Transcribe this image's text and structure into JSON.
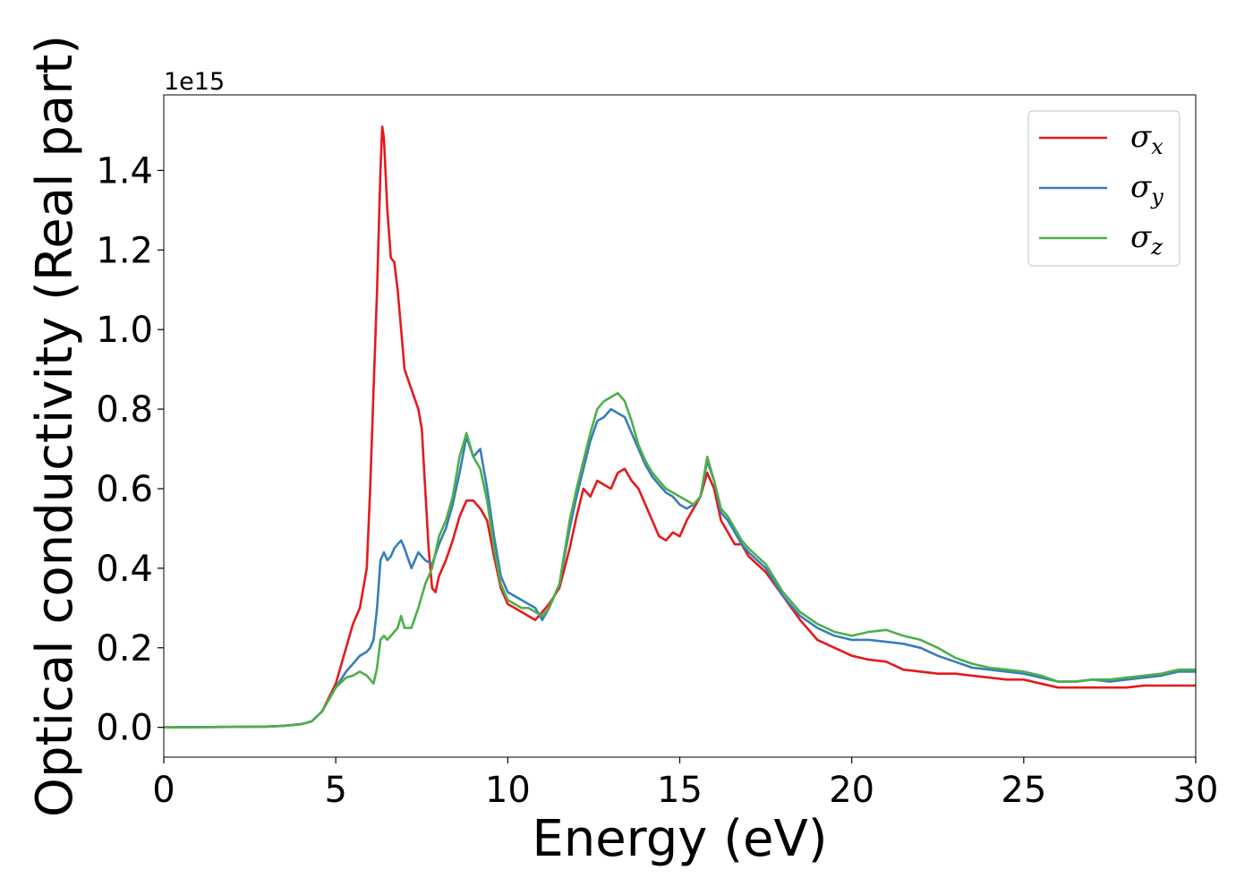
{
  "chart_data": {
    "type": "line",
    "title": "",
    "xlabel": "Energy (eV)",
    "ylabel": "Optical conductivity (Real part)",
    "y_offset_label": "1e15",
    "xlim": [
      0,
      30
    ],
    "ylim": [
      -0.075,
      1.59
    ],
    "xticks": [
      0,
      5,
      10,
      15,
      20,
      25,
      30
    ],
    "xtick_labels": [
      "0",
      "5",
      "10",
      "15",
      "20",
      "25",
      "30"
    ],
    "yticks": [
      0.0,
      0.2,
      0.4,
      0.6,
      0.8,
      1.0,
      1.2,
      1.4
    ],
    "ytick_labels": [
      "0.0",
      "0.2",
      "0.4",
      "0.6",
      "0.8",
      "1.0",
      "1.2",
      "1.4"
    ],
    "grid": false,
    "legend_position": "top-right",
    "series": [
      {
        "name": "σx",
        "legend_symbol": "σ",
        "legend_subscript": "x",
        "color": "#e41a1c",
        "x": [
          0,
          2,
          3,
          3.5,
          4,
          4.3,
          4.6,
          5.0,
          5.3,
          5.5,
          5.7,
          5.9,
          6.0,
          6.1,
          6.2,
          6.3,
          6.35,
          6.4,
          6.5,
          6.6,
          6.7,
          6.8,
          6.9,
          7.0,
          7.2,
          7.4,
          7.5,
          7.6,
          7.7,
          7.8,
          7.9,
          8.0,
          8.2,
          8.4,
          8.6,
          8.8,
          9.0,
          9.2,
          9.4,
          9.6,
          9.8,
          10.0,
          10.2,
          10.4,
          10.6,
          10.8,
          11.0,
          11.2,
          11.5,
          11.8,
          12.0,
          12.2,
          12.4,
          12.6,
          12.8,
          13.0,
          13.2,
          13.4,
          13.6,
          13.8,
          14.0,
          14.2,
          14.4,
          14.6,
          14.8,
          15.0,
          15.2,
          15.4,
          15.6,
          15.8,
          16.0,
          16.2,
          16.4,
          16.6,
          16.8,
          17.0,
          17.5,
          18.0,
          18.5,
          19.0,
          19.5,
          20.0,
          20.5,
          21.0,
          21.5,
          22.0,
          22.5,
          23.0,
          23.5,
          24.0,
          24.5,
          25.0,
          25.5,
          26.0,
          26.5,
          27.0,
          27.5,
          28.0,
          28.5,
          29.0,
          29.5,
          30.0
        ],
        "y": [
          0,
          0.001,
          0.002,
          0.004,
          0.008,
          0.015,
          0.04,
          0.11,
          0.2,
          0.26,
          0.3,
          0.4,
          0.6,
          0.85,
          1.1,
          1.4,
          1.51,
          1.48,
          1.3,
          1.18,
          1.17,
          1.1,
          1.0,
          0.9,
          0.85,
          0.8,
          0.75,
          0.6,
          0.45,
          0.35,
          0.34,
          0.38,
          0.42,
          0.47,
          0.53,
          0.57,
          0.57,
          0.55,
          0.52,
          0.43,
          0.35,
          0.31,
          0.3,
          0.29,
          0.28,
          0.27,
          0.29,
          0.31,
          0.35,
          0.45,
          0.53,
          0.6,
          0.58,
          0.62,
          0.61,
          0.6,
          0.64,
          0.65,
          0.62,
          0.6,
          0.56,
          0.52,
          0.48,
          0.47,
          0.49,
          0.48,
          0.52,
          0.55,
          0.58,
          0.64,
          0.6,
          0.52,
          0.49,
          0.46,
          0.46,
          0.43,
          0.39,
          0.33,
          0.27,
          0.22,
          0.2,
          0.18,
          0.17,
          0.165,
          0.145,
          0.14,
          0.135,
          0.135,
          0.13,
          0.125,
          0.12,
          0.12,
          0.11,
          0.1,
          0.1,
          0.1,
          0.1,
          0.1,
          0.105,
          0.105,
          0.105,
          0.105
        ]
      },
      {
        "name": "σy",
        "legend_symbol": "σ",
        "legend_subscript": "y",
        "color": "#377eb8",
        "x": [
          0,
          2,
          3,
          3.5,
          4,
          4.3,
          4.6,
          5.0,
          5.3,
          5.5,
          5.7,
          5.9,
          6.0,
          6.1,
          6.2,
          6.3,
          6.4,
          6.5,
          6.6,
          6.7,
          6.8,
          6.9,
          7.0,
          7.2,
          7.4,
          7.6,
          7.8,
          8.0,
          8.2,
          8.4,
          8.6,
          8.8,
          9.0,
          9.2,
          9.4,
          9.6,
          9.8,
          10.0,
          10.2,
          10.4,
          10.6,
          10.8,
          11.0,
          11.2,
          11.5,
          11.8,
          12.0,
          12.2,
          12.4,
          12.6,
          12.8,
          13.0,
          13.2,
          13.4,
          13.6,
          13.8,
          14.0,
          14.2,
          14.4,
          14.6,
          14.8,
          15.0,
          15.2,
          15.4,
          15.6,
          15.8,
          16.0,
          16.2,
          16.4,
          16.6,
          16.8,
          17.0,
          17.5,
          18.0,
          18.5,
          19.0,
          19.5,
          20.0,
          20.5,
          21.0,
          21.5,
          22.0,
          22.5,
          23.0,
          23.5,
          24.0,
          24.5,
          25.0,
          25.5,
          26.0,
          26.5,
          27.0,
          27.5,
          28.0,
          28.5,
          29.0,
          29.5,
          30.0
        ],
        "y": [
          0,
          0.001,
          0.002,
          0.004,
          0.008,
          0.015,
          0.04,
          0.1,
          0.14,
          0.16,
          0.18,
          0.19,
          0.2,
          0.22,
          0.3,
          0.42,
          0.44,
          0.42,
          0.43,
          0.45,
          0.46,
          0.47,
          0.45,
          0.4,
          0.44,
          0.42,
          0.41,
          0.46,
          0.5,
          0.56,
          0.64,
          0.73,
          0.68,
          0.7,
          0.6,
          0.48,
          0.38,
          0.34,
          0.33,
          0.32,
          0.31,
          0.3,
          0.27,
          0.3,
          0.36,
          0.5,
          0.58,
          0.65,
          0.72,
          0.77,
          0.78,
          0.8,
          0.79,
          0.78,
          0.74,
          0.7,
          0.66,
          0.63,
          0.61,
          0.59,
          0.58,
          0.56,
          0.55,
          0.56,
          0.58,
          0.67,
          0.62,
          0.54,
          0.52,
          0.49,
          0.46,
          0.44,
          0.4,
          0.33,
          0.28,
          0.25,
          0.23,
          0.22,
          0.22,
          0.215,
          0.21,
          0.2,
          0.18,
          0.165,
          0.15,
          0.145,
          0.14,
          0.135,
          0.125,
          0.115,
          0.115,
          0.12,
          0.115,
          0.12,
          0.125,
          0.13,
          0.14,
          0.14
        ]
      },
      {
        "name": "σz",
        "legend_symbol": "σ",
        "legend_subscript": "z",
        "color": "#4daf4a",
        "x": [
          0,
          2,
          3,
          3.5,
          4,
          4.3,
          4.6,
          5.0,
          5.3,
          5.5,
          5.7,
          5.9,
          6.0,
          6.1,
          6.2,
          6.3,
          6.4,
          6.5,
          6.6,
          6.7,
          6.8,
          6.9,
          7.0,
          7.2,
          7.4,
          7.6,
          7.8,
          8.0,
          8.2,
          8.4,
          8.6,
          8.8,
          9.0,
          9.2,
          9.4,
          9.6,
          9.8,
          10.0,
          10.2,
          10.4,
          10.6,
          10.8,
          11.0,
          11.2,
          11.5,
          11.8,
          12.0,
          12.2,
          12.4,
          12.6,
          12.8,
          13.0,
          13.2,
          13.4,
          13.6,
          13.8,
          14.0,
          14.2,
          14.4,
          14.6,
          14.8,
          15.0,
          15.2,
          15.4,
          15.6,
          15.8,
          16.0,
          16.2,
          16.4,
          16.6,
          16.8,
          17.0,
          17.5,
          18.0,
          18.5,
          19.0,
          19.5,
          20.0,
          20.5,
          21.0,
          21.5,
          22.0,
          22.5,
          23.0,
          23.5,
          24.0,
          24.5,
          25.0,
          25.5,
          26.0,
          26.5,
          27.0,
          27.5,
          28.0,
          28.5,
          29.0,
          29.5,
          30.0
        ],
        "y": [
          0,
          0.001,
          0.002,
          0.004,
          0.008,
          0.015,
          0.04,
          0.1,
          0.125,
          0.13,
          0.14,
          0.13,
          0.12,
          0.11,
          0.15,
          0.22,
          0.23,
          0.22,
          0.23,
          0.24,
          0.25,
          0.28,
          0.25,
          0.25,
          0.3,
          0.36,
          0.4,
          0.48,
          0.52,
          0.58,
          0.68,
          0.74,
          0.68,
          0.65,
          0.57,
          0.45,
          0.36,
          0.32,
          0.31,
          0.3,
          0.3,
          0.29,
          0.28,
          0.3,
          0.36,
          0.52,
          0.6,
          0.67,
          0.74,
          0.8,
          0.82,
          0.83,
          0.84,
          0.82,
          0.77,
          0.71,
          0.67,
          0.64,
          0.62,
          0.6,
          0.59,
          0.58,
          0.57,
          0.56,
          0.58,
          0.68,
          0.62,
          0.55,
          0.53,
          0.5,
          0.47,
          0.45,
          0.41,
          0.34,
          0.29,
          0.26,
          0.24,
          0.23,
          0.24,
          0.245,
          0.23,
          0.22,
          0.2,
          0.175,
          0.16,
          0.15,
          0.145,
          0.14,
          0.13,
          0.115,
          0.115,
          0.12,
          0.12,
          0.125,
          0.13,
          0.135,
          0.145,
          0.145
        ]
      }
    ]
  }
}
